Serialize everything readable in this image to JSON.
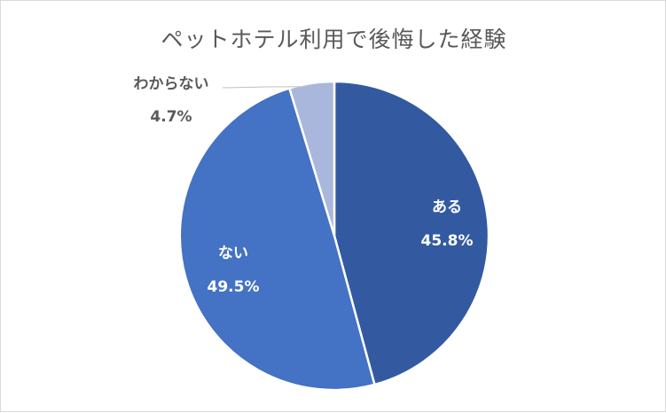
{
  "chart_data": {
    "type": "pie",
    "title": "ペットホテル利用で後悔した経験",
    "slices": [
      {
        "label": "ある",
        "value": 45.8,
        "display": "45.8%",
        "color": "#335aa1"
      },
      {
        "label": "ない",
        "value": 49.5,
        "display": "49.5%",
        "color": "#4472c4"
      },
      {
        "label": "わからない",
        "value": 4.7,
        "display": "4.7%",
        "color": "#a9b7dc"
      }
    ]
  }
}
